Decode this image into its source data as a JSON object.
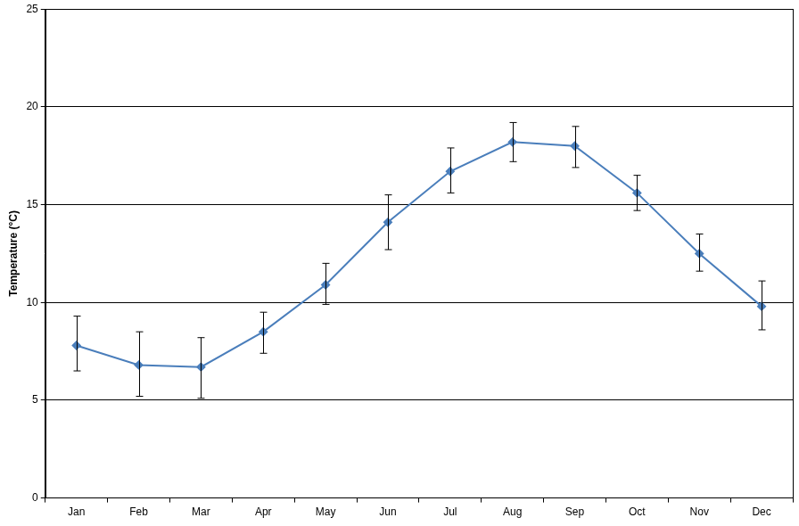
{
  "chart_data": {
    "type": "line",
    "y_label": "Temperature (°C)",
    "categories": [
      "Jan",
      "Feb",
      "Mar",
      "Apr",
      "May",
      "Jun",
      "Jul",
      "Aug",
      "Sep",
      "Oct",
      "Nov",
      "Dec"
    ],
    "values": [
      7.8,
      6.8,
      6.7,
      8.5,
      10.9,
      14.1,
      16.7,
      18.2,
      18.0,
      15.6,
      12.5,
      9.8
    ],
    "error_low": [
      6.5,
      5.2,
      5.1,
      7.4,
      9.9,
      12.7,
      15.6,
      17.2,
      16.9,
      14.7,
      11.6,
      8.6
    ],
    "error_high": [
      9.3,
      8.5,
      8.2,
      9.5,
      12.0,
      15.5,
      17.9,
      19.2,
      19.0,
      16.5,
      13.5,
      11.1
    ],
    "color": "#4a7ebb",
    "marker": "diamond",
    "ylim": [
      0,
      25
    ],
    "yticks": [
      0,
      5,
      10,
      15,
      20,
      25
    ],
    "grid": true
  }
}
